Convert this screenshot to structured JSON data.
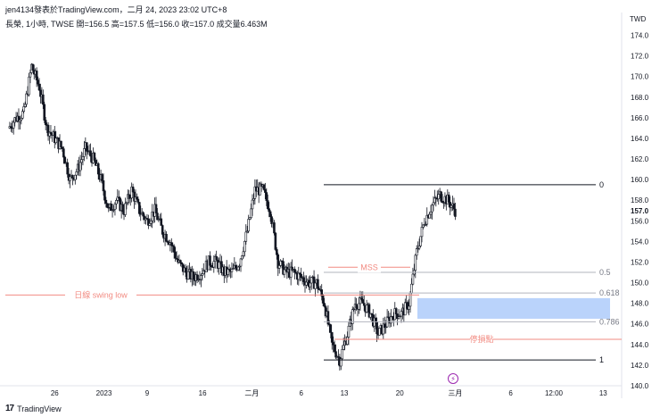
{
  "header": {
    "title": "jen4134發表於TradingView.com，二月 24, 2023 23:02 UTC+8",
    "subtitle": "長榮, 1小時, TWSE  開=156.5  高=157.5  低=156.0  收=157.0  成交量6.463M"
  },
  "footer": {
    "brand": "TradingView",
    "logo": "17"
  },
  "colors": {
    "candle": "#131722",
    "grid_line": "#e0e3eb",
    "fib_line": "#b2b5be",
    "anno_line": "#f28b82",
    "zone_fill": "#aecbfa",
    "price_tag": "#131722"
  },
  "chart_data": {
    "type": "candlestick",
    "currency": "TWD",
    "current_price": "157.0",
    "ylim": [
      140,
      175
    ],
    "y_ticks": [
      "174.0",
      "172.0",
      "170.0",
      "168.0",
      "166.0",
      "164.0",
      "162.0",
      "160.0",
      "158.0",
      "156.0",
      "154.0",
      "152.0",
      "150.0",
      "148.0",
      "146.0",
      "144.0",
      "142.0",
      "140.0"
    ],
    "x_ticks": [
      "26",
      "2023",
      "9",
      "16",
      "二月",
      "6",
      "13",
      "20",
      "三月",
      "6",
      "12:00",
      "13"
    ],
    "x_tick_positions": [
      0.08,
      0.16,
      0.23,
      0.32,
      0.4,
      0.48,
      0.55,
      0.64,
      0.73,
      0.82,
      0.89,
      0.97
    ],
    "close_path": [
      165,
      166,
      166.5,
      171,
      169,
      165,
      164,
      163,
      160,
      161,
      163,
      162,
      160,
      157,
      158,
      157,
      159,
      157,
      156,
      157,
      155,
      154,
      152,
      151,
      150.5,
      151,
      152,
      152,
      151,
      151,
      152,
      155,
      159,
      159,
      157,
      152,
      151,
      151,
      150.5,
      150,
      150,
      148,
      144,
      142.5,
      145,
      148,
      148,
      147,
      145,
      146,
      147,
      147,
      148,
      153,
      156,
      157.5,
      158.5,
      158,
      157
    ],
    "levels": [
      {
        "label": "0",
        "price": 159.5
      },
      {
        "label": "0.5",
        "price": 151.0
      },
      {
        "label": "0.618",
        "price": 149.0
      },
      {
        "label": "0.786",
        "price": 146.2
      },
      {
        "label": "1",
        "price": 142.5
      }
    ],
    "annotations": [
      {
        "label": "MSS",
        "price": 151.5
      },
      {
        "label": "日線 swing low",
        "price": 148.8
      },
      {
        "label": "停損點",
        "price": 144.5
      }
    ],
    "zone": {
      "top": 148.5,
      "bottom": 146.5
    }
  }
}
